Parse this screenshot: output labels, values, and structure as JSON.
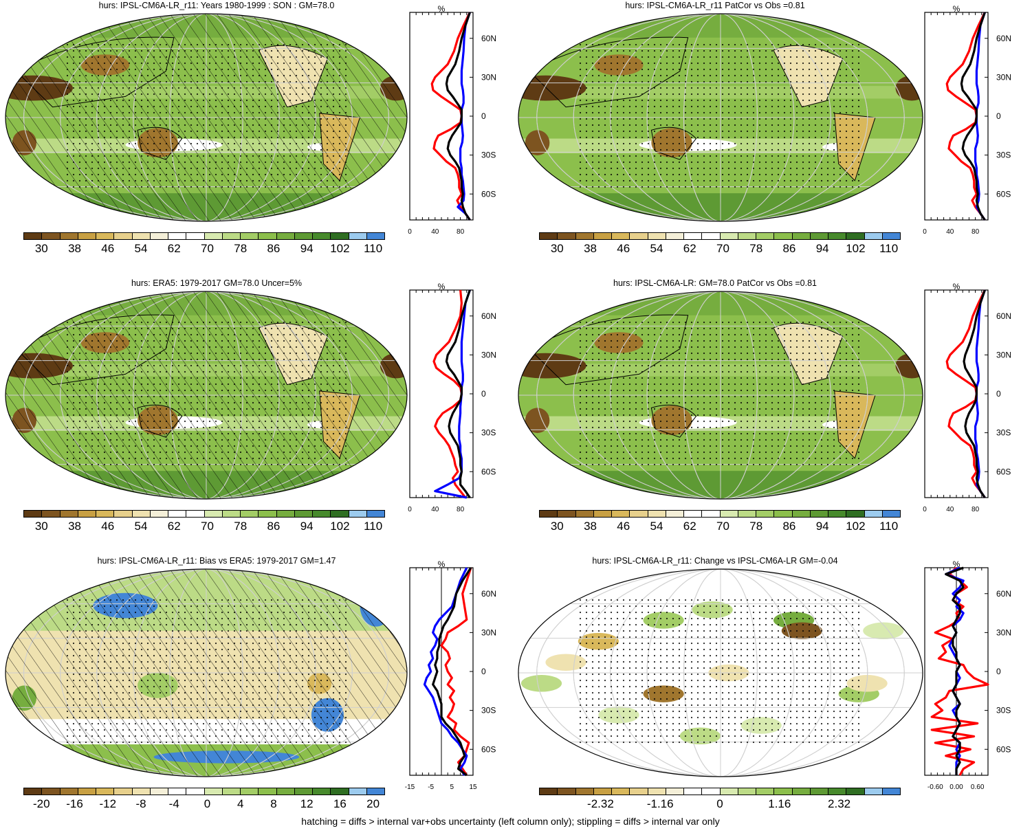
{
  "footer": "hatching = diffs > internal var+obs uncertainty (left column only); stippling = diffs > internal var only",
  "colors": {
    "abs": [
      "#5e3b14",
      "#7d5420",
      "#a0762e",
      "#c8a043",
      "#d9b85b",
      "#e7d08c",
      "#efe2b0",
      "#f4efd8",
      "#ffffff",
      "#ffffff",
      "#d8eab0",
      "#bcdb86",
      "#a3cd66",
      "#8cbf4c",
      "#76ad3f",
      "#5e9a34",
      "#478a2c",
      "#2f6e22",
      "#9ccbee",
      "#4386d6"
    ],
    "bias": [
      "#5e3b14",
      "#7d5420",
      "#a0762e",
      "#c8a043",
      "#d9b85b",
      "#e7d08c",
      "#efe2b0",
      "#f4efd8",
      "#ffffff",
      "#ffffff",
      "#d8eab0",
      "#bcdb86",
      "#a3cd66",
      "#8cbf4c",
      "#76ad3f",
      "#5e9a34",
      "#478a2c",
      "#2f6e22",
      "#9ccbee",
      "#4386d6"
    ],
    "line_red": "#ff0000",
    "line_blue": "#0000ff",
    "line_black": "#000000",
    "ocean_abs": "#8cbf4c",
    "ocean_bias": "#ffffff",
    "ocean_change": "#ffffff"
  },
  "panels": [
    {
      "id": "p1",
      "title": "hurs: IPSL-CM6A-LR_r11: Years 1980-1999 : SON : GM=78.0",
      "scheme": "abs",
      "hatched": true,
      "unit": "%",
      "lat_labels": [
        "60N",
        "30N",
        "0",
        "30S",
        "60S"
      ],
      "x_ticks": [
        "0",
        "40",
        "80"
      ],
      "colorbar_labels": [
        "30",
        "38",
        "46",
        "54",
        "62",
        "70",
        "78",
        "86",
        "94",
        "102",
        "110"
      ],
      "zonal": {
        "xlim": [
          0,
          100
        ],
        "lat": [
          80,
          70,
          60,
          50,
          40,
          35,
          30,
          25,
          20,
          15,
          10,
          5,
          0,
          -5,
          -10,
          -15,
          -20,
          -25,
          -30,
          -35,
          -40,
          -45,
          -50,
          -55,
          -60,
          -65,
          -70,
          -75,
          -80
        ],
        "red": [
          95,
          85,
          76,
          70,
          60,
          50,
          40,
          35,
          37,
          50,
          65,
          80,
          82,
          80,
          65,
          45,
          40,
          38,
          48,
          58,
          72,
          76,
          78,
          78,
          82,
          75,
          80,
          88,
          95
        ],
        "blue": [
          95,
          88,
          86,
          85,
          83,
          82,
          82,
          82,
          84,
          85,
          85,
          82,
          82,
          82,
          83,
          84,
          83,
          80,
          80,
          80,
          82,
          82,
          84,
          85,
          86,
          85,
          76,
          88,
          95
        ],
        "black": [
          95,
          88,
          82,
          78,
          72,
          66,
          60,
          58,
          60,
          68,
          75,
          82,
          82,
          81,
          74,
          67,
          62,
          60,
          64,
          72,
          78,
          80,
          82,
          82,
          84,
          82,
          84,
          88,
          95
        ]
      }
    },
    {
      "id": "p2",
      "title": "hurs: IPSL-CM6A-LR_r11 PatCor vs Obs =0.81",
      "scheme": "abs",
      "hatched": false,
      "unit": "%",
      "lat_labels": [
        "60N",
        "30N",
        "0",
        "30S",
        "60S"
      ],
      "x_ticks": [
        "0",
        "40",
        "80"
      ],
      "colorbar_labels": [
        "30",
        "38",
        "46",
        "54",
        "62",
        "70",
        "78",
        "86",
        "94",
        "102",
        "110"
      ],
      "zonal": {
        "xlim": [
          0,
          100
        ],
        "lat": [
          80,
          70,
          60,
          50,
          40,
          35,
          30,
          25,
          20,
          15,
          10,
          5,
          0,
          -5,
          -10,
          -15,
          -20,
          -25,
          -30,
          -35,
          -40,
          -45,
          -50,
          -55,
          -60,
          -65,
          -70,
          -75,
          -80
        ],
        "red": [
          95,
          85,
          76,
          70,
          60,
          50,
          40,
          35,
          37,
          50,
          65,
          80,
          82,
          80,
          65,
          45,
          40,
          38,
          48,
          58,
          72,
          76,
          78,
          78,
          82,
          75,
          80,
          88,
          95
        ],
        "blue": [
          95,
          88,
          86,
          85,
          83,
          82,
          82,
          82,
          84,
          85,
          85,
          82,
          82,
          82,
          83,
          84,
          83,
          80,
          80,
          80,
          82,
          82,
          84,
          85,
          86,
          85,
          82,
          88,
          95
        ],
        "black": [
          95,
          88,
          82,
          78,
          72,
          66,
          60,
          58,
          60,
          68,
          75,
          82,
          82,
          81,
          74,
          67,
          62,
          60,
          64,
          72,
          78,
          80,
          82,
          82,
          84,
          82,
          84,
          88,
          95
        ]
      }
    },
    {
      "id": "p3",
      "title": "hurs: ERA5: 1979-2017 GM=78.0 Uncer=5%",
      "scheme": "abs",
      "hatched": true,
      "unit": "%",
      "lat_labels": [
        "60N",
        "30N",
        "0",
        "30S",
        "60S"
      ],
      "x_ticks": [
        "0",
        "40",
        "80"
      ],
      "colorbar_labels": [
        "30",
        "38",
        "46",
        "54",
        "62",
        "70",
        "78",
        "86",
        "94",
        "102",
        "110"
      ],
      "zonal": {
        "xlim": [
          0,
          100
        ],
        "lat": [
          80,
          70,
          60,
          50,
          40,
          35,
          30,
          25,
          20,
          15,
          10,
          5,
          0,
          -5,
          -10,
          -15,
          -20,
          -25,
          -30,
          -35,
          -40,
          -45,
          -50,
          -55,
          -60,
          -65,
          -70,
          -75,
          -80
        ],
        "red": [
          80,
          82,
          80,
          72,
          62,
          52,
          42,
          38,
          42,
          55,
          70,
          80,
          82,
          80,
          68,
          52,
          44,
          40,
          46,
          55,
          62,
          66,
          70,
          72,
          76,
          68,
          72,
          80,
          88
        ],
        "blue": [
          95,
          88,
          86,
          84,
          82,
          82,
          82,
          82,
          83,
          84,
          84,
          82,
          82,
          81,
          80,
          80,
          79,
          78,
          78,
          78,
          80,
          80,
          82,
          82,
          82,
          78,
          60,
          40,
          90
        ],
        "black": [
          95,
          88,
          82,
          78,
          72,
          66,
          60,
          58,
          62,
          70,
          76,
          82,
          82,
          80,
          74,
          68,
          64,
          62,
          64,
          70,
          76,
          78,
          80,
          80,
          82,
          80,
          80,
          88,
          95
        ]
      }
    },
    {
      "id": "p4",
      "title": "hurs: IPSL-CM6A-LR: GM=78.0 PatCor vs Obs =0.81",
      "scheme": "abs",
      "hatched": false,
      "unit": "%",
      "lat_labels": [
        "60N",
        "30N",
        "0",
        "30S",
        "60S"
      ],
      "x_ticks": [
        "0",
        "40",
        "80"
      ],
      "colorbar_labels": [
        "30",
        "38",
        "46",
        "54",
        "62",
        "70",
        "78",
        "86",
        "94",
        "102",
        "110"
      ],
      "zonal": {
        "xlim": [
          0,
          100
        ],
        "lat": [
          80,
          70,
          60,
          50,
          40,
          35,
          30,
          25,
          20,
          15,
          10,
          5,
          0,
          -5,
          -10,
          -15,
          -20,
          -25,
          -30,
          -35,
          -40,
          -45,
          -50,
          -55,
          -60,
          -65,
          -70,
          -75,
          -80
        ],
        "red": [
          95,
          85,
          76,
          70,
          60,
          50,
          40,
          35,
          37,
          50,
          65,
          80,
          82,
          80,
          65,
          45,
          40,
          38,
          48,
          58,
          72,
          76,
          78,
          78,
          82,
          75,
          80,
          88,
          95
        ],
        "blue": [
          95,
          88,
          86,
          85,
          83,
          82,
          82,
          82,
          84,
          85,
          85,
          82,
          82,
          82,
          83,
          84,
          83,
          80,
          80,
          80,
          82,
          82,
          84,
          85,
          86,
          85,
          82,
          88,
          95
        ],
        "black": [
          95,
          88,
          82,
          78,
          72,
          68,
          64,
          62,
          64,
          70,
          76,
          82,
          82,
          81,
          76,
          70,
          66,
          64,
          66,
          72,
          78,
          80,
          82,
          82,
          84,
          82,
          84,
          88,
          95
        ]
      }
    },
    {
      "id": "p5",
      "title": "hurs: IPSL-CM6A-LR_r11: Bias vs ERA5: 1979-2017  GM=1.47",
      "scheme": "bias",
      "hatched": true,
      "unit": "%",
      "lat_labels": [
        "60N",
        "30N",
        "0",
        "30S",
        "60S"
      ],
      "x_ticks": [
        "-15",
        "-5",
        "5",
        "15"
      ],
      "colorbar_labels": [
        "-20",
        "-16",
        "-12",
        "-8",
        "-4",
        "0",
        "4",
        "8",
        "12",
        "16",
        "20"
      ],
      "zonal": {
        "xlim": [
          -15,
          15
        ],
        "lat": [
          80,
          70,
          60,
          50,
          40,
          35,
          30,
          25,
          20,
          15,
          10,
          5,
          0,
          -5,
          -10,
          -15,
          -20,
          -25,
          -30,
          -35,
          -40,
          -45,
          -50,
          -55,
          -60,
          -65,
          -70,
          -75,
          -80
        ],
        "red": [
          14,
          12,
          10,
          11,
          12,
          8,
          3,
          2,
          0,
          3,
          4,
          2,
          3,
          5,
          3,
          6,
          4,
          6,
          5,
          3,
          7,
          6,
          9,
          13,
          12,
          11,
          8,
          10,
          12
        ],
        "blue": [
          12,
          9,
          7,
          5,
          -1,
          -3,
          -4,
          -2,
          -3,
          -5,
          -4,
          -6,
          -5,
          -7,
          -8,
          -6,
          -4,
          -3,
          -2,
          -1,
          0,
          3,
          5,
          8,
          10,
          12,
          11,
          9,
          11
        ],
        "black": [
          14,
          10,
          7,
          6,
          3,
          1,
          0,
          -1,
          -1,
          -2,
          -2,
          -3,
          -2,
          -3,
          -4,
          -2,
          -1,
          0,
          0,
          0,
          2,
          5,
          7,
          9,
          10,
          11,
          9,
          8,
          12
        ]
      }
    },
    {
      "id": "p6",
      "title": "hurs: IPSL-CM6A-LR_r11: Change vs IPSL-CM6A-LR GM=-0.04",
      "scheme": "bias",
      "hatched": false,
      "unit": "%",
      "lat_labels": [
        "60N",
        "30N",
        "0",
        "30S",
        "60S"
      ],
      "x_ticks": [
        "-0.60",
        "0.00",
        "0.60"
      ],
      "colorbar_labels": [
        "-2.32",
        "-1.16",
        "0",
        "1.16",
        "2.32"
      ],
      "zonal": {
        "xlim": [
          -0.9,
          0.9
        ],
        "lat": [
          80,
          75,
          70,
          65,
          60,
          55,
          50,
          45,
          40,
          35,
          30,
          25,
          20,
          15,
          10,
          5,
          0,
          -5,
          -10,
          -15,
          -20,
          -25,
          -30,
          -35,
          -40,
          -45,
          -50,
          -55,
          -60,
          -65,
          -70,
          -75,
          -80
        ],
        "red": [
          0.0,
          -0.2,
          0.1,
          0.3,
          0.0,
          -0.1,
          0.2,
          0.0,
          0.1,
          -0.2,
          -0.6,
          -0.1,
          -0.4,
          -0.3,
          -0.5,
          0.2,
          0.3,
          0.5,
          0.9,
          -0.2,
          -0.3,
          -0.6,
          -0.4,
          -0.7,
          0.6,
          -0.7,
          0.5,
          -0.6,
          0.4,
          -0.3,
          0.5,
          0.2,
          0.1
        ],
        "blue": [
          0.1,
          -0.3,
          0.2,
          0.1,
          -0.1,
          0.1,
          0.0,
          0.2,
          0.1,
          -0.1,
          0.0,
          -0.1,
          -0.2,
          -0.1,
          0.0,
          0.1,
          0.0,
          0.1,
          0.0,
          -0.1,
          0.0,
          0.1,
          -0.1,
          0.0,
          0.1,
          0.0,
          -0.1,
          0.1,
          0.0,
          0.1,
          0.0,
          0.0,
          0.0
        ],
        "black": [
          0.2,
          -0.3,
          0.1,
          0.2,
          0.0,
          -0.1,
          0.1,
          0.1,
          0.0,
          -0.1,
          0.0,
          -0.1,
          -0.1,
          0.0,
          0.0,
          0.1,
          0.0,
          0.0,
          0.0,
          -0.1,
          0.0,
          0.1,
          0.0,
          0.0,
          0.1,
          0.0,
          -0.1,
          0.1,
          0.1,
          0.0,
          0.1,
          0.0,
          0.0
        ]
      }
    }
  ]
}
